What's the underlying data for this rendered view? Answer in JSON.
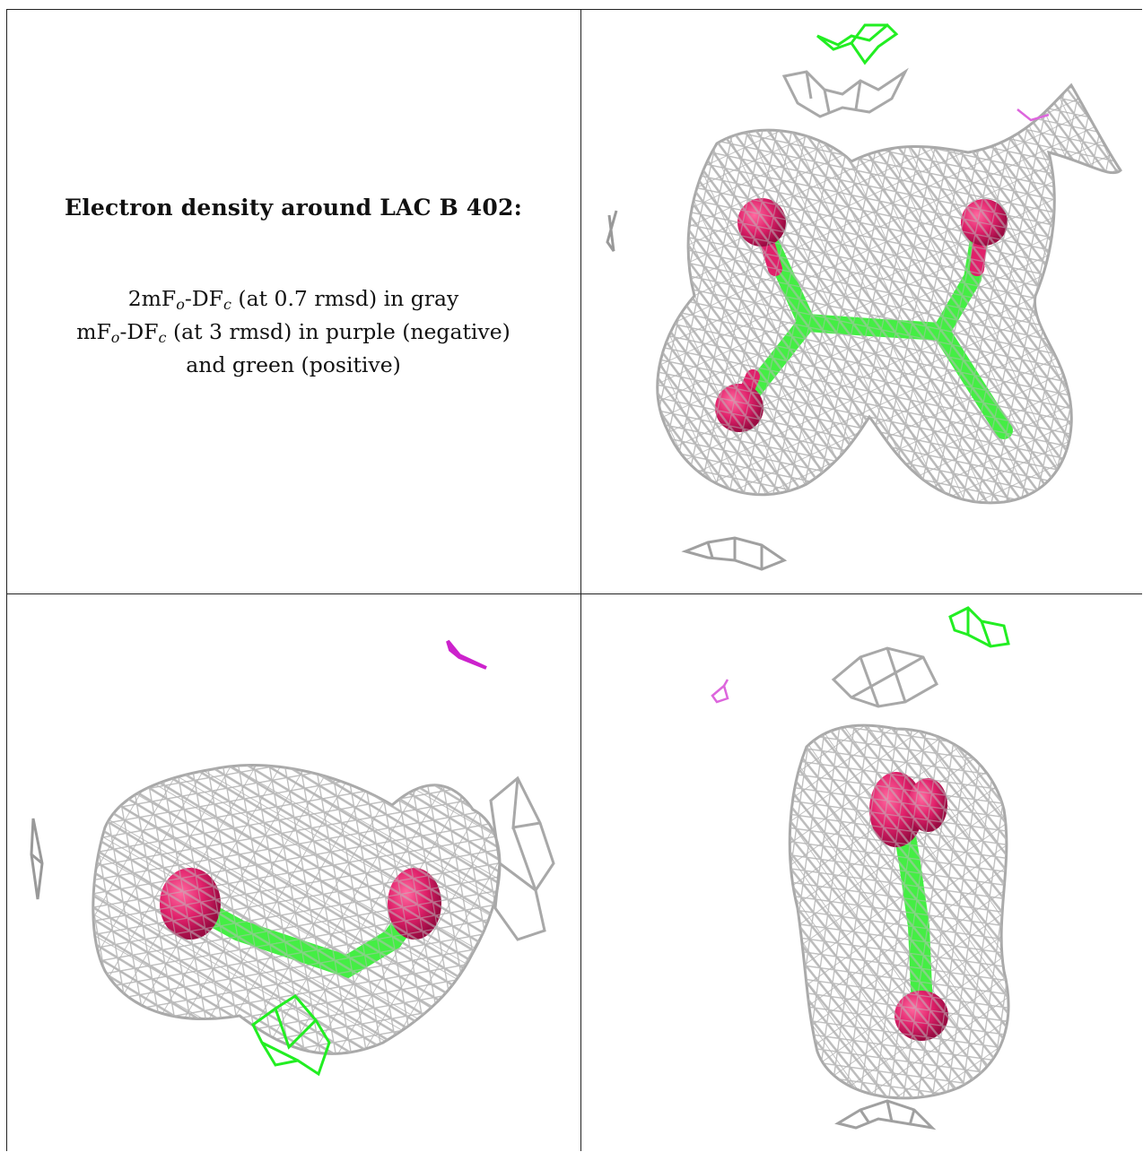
{
  "caption": {
    "title": "Electron density around LAC B 402:",
    "line1_prefix": "2mF",
    "line1_sub_o": "o",
    "line1_mid": "-DF",
    "line1_sub_c": "c",
    "line1_suffix": " (at 0.7 rmsd) in gray",
    "line2_prefix": "mF",
    "line2_sub_o": "o",
    "line2_mid": "-DF",
    "line2_sub_c": "c",
    "line2_suffix": " (at 3 rmsd) in purple (negative)",
    "line3": "and green (positive)"
  },
  "colors": {
    "mesh_gray": "#b8b8b8",
    "mesh_gray_dark": "#8c8c8c",
    "positive_green": "#22ee22",
    "negative_purple": "#dd44dd",
    "oxygen_red": "#e0206a",
    "carbon_green": "#44ee44",
    "border": "#222222"
  },
  "panels": [
    {
      "name": "view-top-right",
      "content": "mesh-density-ligand"
    },
    {
      "name": "view-bottom-left",
      "content": "mesh-density-ligand"
    },
    {
      "name": "view-bottom-right",
      "content": "mesh-density-ligand"
    }
  ]
}
